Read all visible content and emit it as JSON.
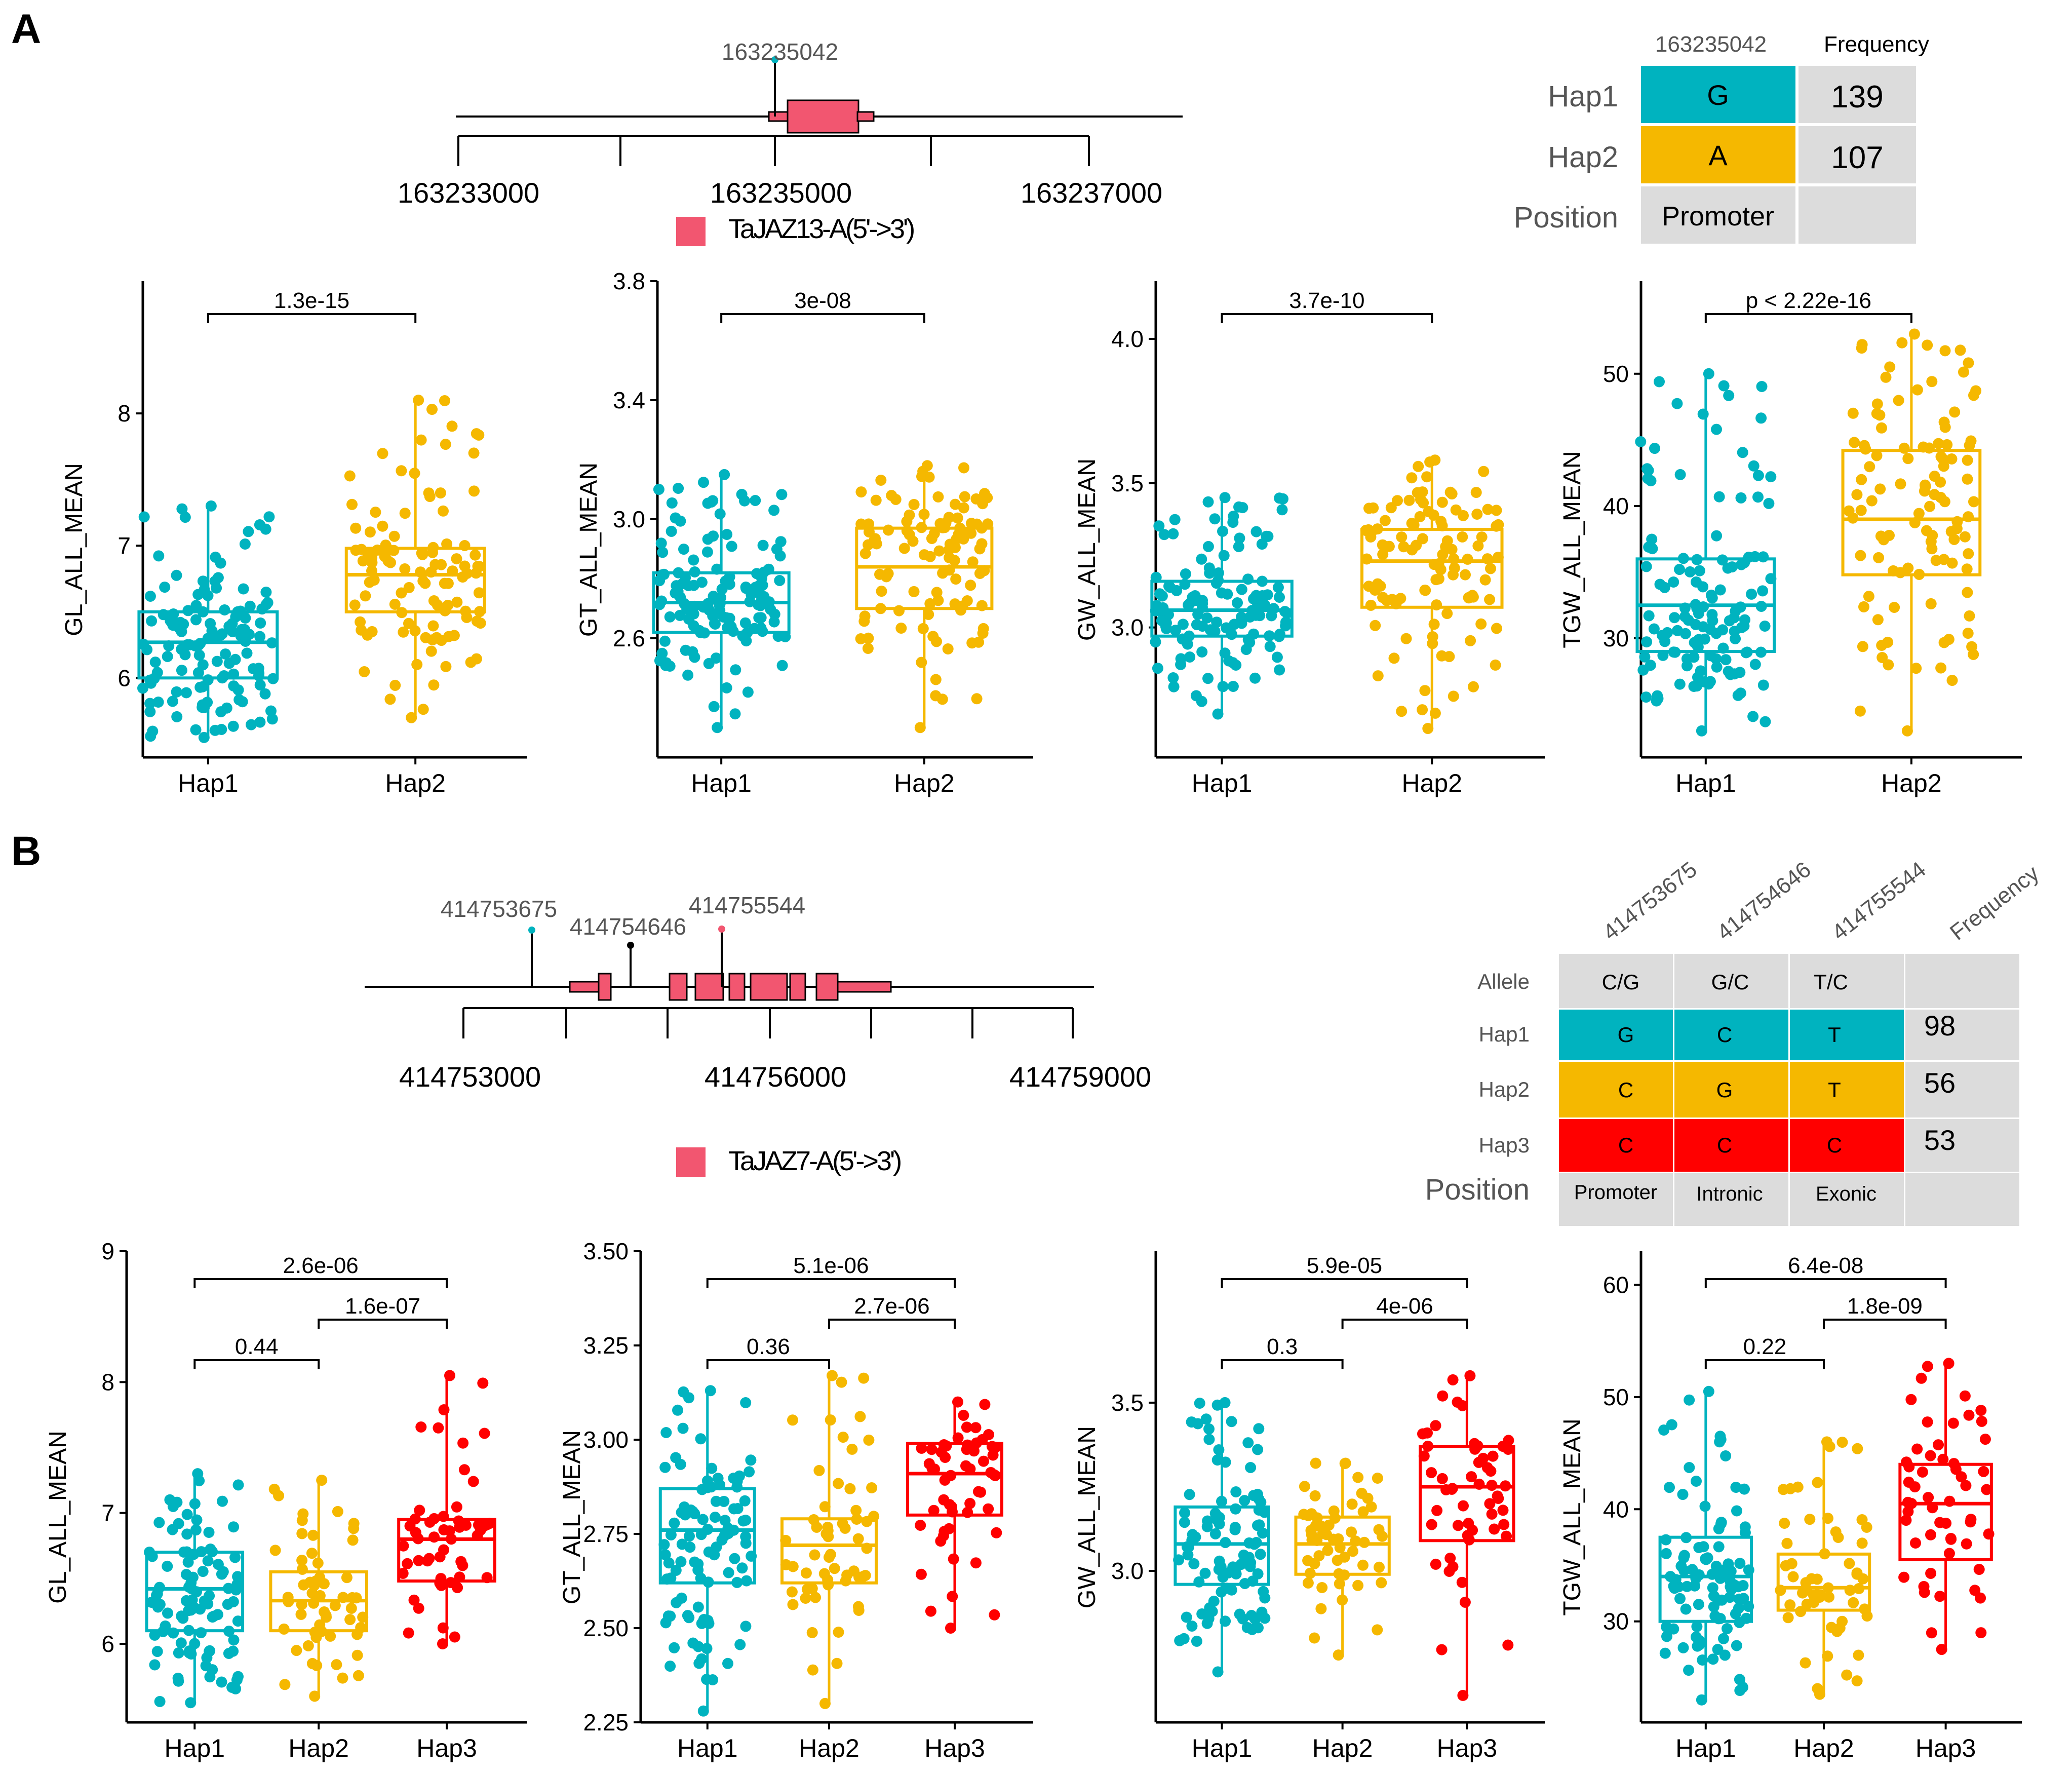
{
  "panel_labels": [
    "A",
    "B"
  ],
  "colors": {
    "hap1": "#00b3bf",
    "hap2": "#f5b800",
    "hap3": "#ff0000",
    "gene": "#f25670",
    "cellgray": "#dcdcdc"
  },
  "panelA": {
    "gene": {
      "snp_labels": [
        "163235042"
      ],
      "ticks": [
        "163233000",
        "163235000",
        "163237000"
      ],
      "legend": "TaJAZ13-A(5'->3')"
    },
    "table": {
      "header": [
        "163235042",
        "Frequency"
      ],
      "rows": [
        {
          "label": "Hap1",
          "alleles": [
            "G"
          ],
          "freq": "139"
        },
        {
          "label": "Hap2",
          "alleles": [
            "A"
          ],
          "freq": "107"
        }
      ],
      "position_label": "Position",
      "positions": [
        "Promoter"
      ]
    }
  },
  "panelB": {
    "gene": {
      "snp_labels": [
        "414753675",
        "414754646",
        "414755544"
      ],
      "ticks": [
        "414753000",
        "414756000",
        "414759000"
      ],
      "legend": "TaJAZ7-A(5'->3')"
    },
    "table": {
      "header": [
        "414753675",
        "414754646",
        "414755544",
        "Frequency"
      ],
      "allele_label": "Allele",
      "alleles": [
        "C/G",
        "G/C",
        "T/C"
      ],
      "rows": [
        {
          "label": "Hap1",
          "alleles": [
            "G",
            "C",
            "T"
          ],
          "freq": "98"
        },
        {
          "label": "Hap2",
          "alleles": [
            "C",
            "G",
            "T"
          ],
          "freq": "56"
        },
        {
          "label": "Hap3",
          "alleles": [
            "C",
            "C",
            "C"
          ],
          "freq": "53"
        }
      ],
      "position_label": "Position",
      "positions": [
        "Promoter",
        "Intronic",
        "Exonic"
      ]
    }
  },
  "chart_data": [
    {
      "id": "A1",
      "type": "box",
      "ylabel": "GL_ALL_MEAN",
      "ylim": [
        5.4,
        9.0
      ],
      "yticks": [
        "6",
        "7",
        "8"
      ],
      "groups": [
        {
          "name": "Hap1",
          "min": 5.55,
          "q1": 6.0,
          "median": 6.27,
          "q3": 6.5,
          "max": 7.3,
          "n": 139
        },
        {
          "name": "Hap2",
          "min": 5.7,
          "q1": 6.5,
          "median": 6.78,
          "q3": 6.98,
          "max": 8.1,
          "n": 107
        }
      ],
      "comparisons": [
        {
          "a": 0,
          "b": 1,
          "label": "1.3e-15"
        }
      ]
    },
    {
      "id": "A2",
      "type": "box",
      "ylabel": "GT_ALL_MEAN",
      "ylim": [
        2.2,
        3.8
      ],
      "yticks": [
        "2.6",
        "3.0",
        "3.4",
        "3.8"
      ],
      "groups": [
        {
          "name": "Hap1",
          "min": 2.3,
          "q1": 2.62,
          "median": 2.72,
          "q3": 2.82,
          "max": 3.15,
          "n": 139
        },
        {
          "name": "Hap2",
          "min": 2.3,
          "q1": 2.7,
          "median": 2.84,
          "q3": 2.97,
          "max": 3.18,
          "n": 107
        }
      ],
      "comparisons": [
        {
          "a": 0,
          "b": 1,
          "label": "3e-08"
        }
      ]
    },
    {
      "id": "A3",
      "type": "box",
      "ylabel": "GW_ALL_MEAN",
      "ylim": [
        2.55,
        4.2
      ],
      "yticks": [
        "3.0",
        "3.5",
        "4.0"
      ],
      "groups": [
        {
          "name": "Hap1",
          "min": 2.7,
          "q1": 2.97,
          "median": 3.06,
          "q3": 3.16,
          "max": 3.45,
          "n": 139
        },
        {
          "name": "Hap2",
          "min": 2.65,
          "q1": 3.07,
          "median": 3.23,
          "q3": 3.34,
          "max": 3.58,
          "n": 107
        }
      ],
      "comparisons": [
        {
          "a": 0,
          "b": 1,
          "label": "3.7e-10"
        }
      ]
    },
    {
      "id": "A4",
      "type": "box",
      "ylabel": "TGW_ALL_MEAN",
      "ylim": [
        21,
        57
      ],
      "yticks": [
        "30",
        "40",
        "50"
      ],
      "groups": [
        {
          "name": "Hap1",
          "min": 23,
          "q1": 29,
          "median": 32.5,
          "q3": 36,
          "max": 50,
          "n": 139
        },
        {
          "name": "Hap2",
          "min": 23,
          "q1": 34.8,
          "median": 39,
          "q3": 44.2,
          "max": 53,
          "n": 107
        }
      ],
      "comparisons": [
        {
          "a": 0,
          "b": 1,
          "label": "p < 2.22e-16"
        }
      ]
    },
    {
      "id": "B1",
      "type": "box",
      "ylabel": "GL_ALL_MEAN",
      "ylim": [
        5.4,
        9.0
      ],
      "yticks": [
        "6",
        "7",
        "8",
        "9"
      ],
      "groups": [
        {
          "name": "Hap1",
          "min": 5.55,
          "q1": 6.1,
          "median": 6.42,
          "q3": 6.7,
          "max": 7.3,
          "n": 98
        },
        {
          "name": "Hap2",
          "min": 5.6,
          "q1": 6.1,
          "median": 6.33,
          "q3": 6.55,
          "max": 7.25,
          "n": 56
        },
        {
          "name": "Hap3",
          "min": 6.0,
          "q1": 6.48,
          "median": 6.8,
          "q3": 6.95,
          "max": 8.05,
          "n": 53
        }
      ],
      "comparisons": [
        {
          "a": 0,
          "b": 1,
          "label": "0.44"
        },
        {
          "a": 1,
          "b": 2,
          "label": "1.6e-07"
        },
        {
          "a": 0,
          "b": 2,
          "label": "2.6e-06"
        }
      ]
    },
    {
      "id": "B2",
      "type": "box",
      "ylabel": "GT_ALL_MEAN",
      "ylim": [
        2.25,
        3.5
      ],
      "yticks": [
        "2.25",
        "2.50",
        "2.75",
        "3.00",
        "3.25",
        "3.50"
      ],
      "groups": [
        {
          "name": "Hap1",
          "min": 2.28,
          "q1": 2.62,
          "median": 2.76,
          "q3": 2.87,
          "max": 3.13,
          "n": 98
        },
        {
          "name": "Hap2",
          "min": 2.3,
          "q1": 2.62,
          "median": 2.72,
          "q3": 2.79,
          "max": 3.17,
          "n": 56
        },
        {
          "name": "Hap3",
          "min": 2.5,
          "q1": 2.8,
          "median": 2.91,
          "q3": 2.99,
          "max": 3.1,
          "n": 53
        }
      ],
      "comparisons": [
        {
          "a": 0,
          "b": 1,
          "label": "0.36"
        },
        {
          "a": 1,
          "b": 2,
          "label": "2.7e-06"
        },
        {
          "a": 0,
          "b": 2,
          "label": "5.1e-06"
        }
      ]
    },
    {
      "id": "B3",
      "type": "box",
      "ylabel": "GW_ALL_MEAN",
      "ylim": [
        2.55,
        3.95
      ],
      "yticks": [
        "3.0",
        "3.5"
      ],
      "groups": [
        {
          "name": "Hap1",
          "min": 2.7,
          "q1": 2.96,
          "median": 3.08,
          "q3": 3.19,
          "max": 3.5,
          "n": 98
        },
        {
          "name": "Hap2",
          "min": 2.75,
          "q1": 2.99,
          "median": 3.08,
          "q3": 3.16,
          "max": 3.32,
          "n": 56
        },
        {
          "name": "Hap3",
          "min": 2.63,
          "q1": 3.09,
          "median": 3.25,
          "q3": 3.37,
          "max": 3.58,
          "n": 53
        }
      ],
      "comparisons": [
        {
          "a": 0,
          "b": 1,
          "label": "0.3"
        },
        {
          "a": 1,
          "b": 2,
          "label": "4e-06"
        },
        {
          "a": 0,
          "b": 2,
          "label": "5.9e-05"
        }
      ]
    },
    {
      "id": "B4",
      "type": "box",
      "ylabel": "TGW_ALL_MEAN",
      "ylim": [
        21,
        63
      ],
      "yticks": [
        "30",
        "40",
        "50",
        "60"
      ],
      "groups": [
        {
          "name": "Hap1",
          "min": 23,
          "q1": 30,
          "median": 34,
          "q3": 37.5,
          "max": 50.5,
          "n": 98
        },
        {
          "name": "Hap2",
          "min": 23.5,
          "q1": 31,
          "median": 33,
          "q3": 36,
          "max": 46,
          "n": 56
        },
        {
          "name": "Hap3",
          "min": 27.5,
          "q1": 35.5,
          "median": 40.5,
          "q3": 44,
          "max": 53,
          "n": 53
        }
      ],
      "comparisons": [
        {
          "a": 0,
          "b": 1,
          "label": "0.22"
        },
        {
          "a": 1,
          "b": 2,
          "label": "1.8e-09"
        },
        {
          "a": 0,
          "b": 2,
          "label": "6.4e-08"
        }
      ]
    }
  ]
}
